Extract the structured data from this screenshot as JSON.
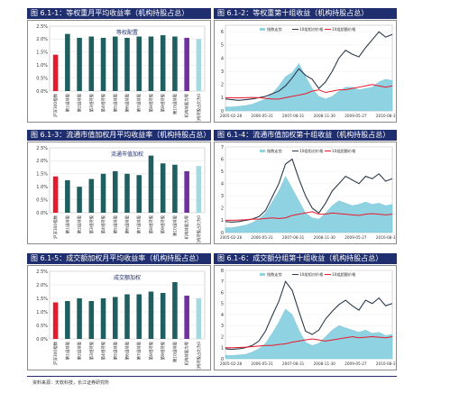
{
  "footer": {
    "source": "资料来源：天软科技，长江证券研究所"
  },
  "panels": [
    {
      "id": "p1",
      "title": "图 6.1-1：等权重月平均收益率（机构持股占总）",
      "type": "bar"
    },
    {
      "id": "p2",
      "title": "图 6.1-2：等权重第十组收益（机构持股占总）",
      "type": "line"
    },
    {
      "id": "p3",
      "title": "图 6.1-3：流通市值加权月平均收益率（机构持股占总）",
      "type": "bar"
    },
    {
      "id": "p4",
      "title": "图 6.1-4：流通市值加权第十组收益（机构持股占总）",
      "type": "line"
    },
    {
      "id": "p5",
      "title": "图 6.1-5：成交额加权月平均收益率（机构持股占总）",
      "type": "bar"
    },
    {
      "id": "p6",
      "title": "图 6.1-6：成交额分组第十组收益（机构持股占总）",
      "type": "line"
    }
  ],
  "chart_data": [
    {
      "type": "bar",
      "title": "等权配置",
      "categories": [
        "沪深300指数",
        "第1组持股",
        "第2组持股",
        "第3组持股",
        "第4组持股",
        "第5组持股",
        "第6组持股",
        "第7组持股",
        "第8组持股",
        "第9组持股",
        "第10组持股",
        "机构持股为零",
        "机构持股占比为0"
      ],
      "values": [
        1.4,
        2.2,
        2.05,
        2.1,
        2.05,
        2.1,
        2.05,
        2.1,
        2.1,
        2.15,
        2.1,
        2.05,
        2.0
      ],
      "colors": [
        "#e8192c",
        "#1f5f5f",
        "#1f5f5f",
        "#1f5f5f",
        "#1f5f5f",
        "#1f5f5f",
        "#1f5f5f",
        "#1f5f5f",
        "#1f5f5f",
        "#1f5f5f",
        "#1f5f5f",
        "#7030a0",
        "#a6d8e0"
      ],
      "yticks": [
        "0.0%",
        "0.5%",
        "1.0%",
        "1.5%",
        "2.0%",
        "2.5%"
      ],
      "ylim": [
        0,
        2.5
      ]
    },
    {
      "type": "line",
      "legend": [
        "指数走势",
        "10组相对价格",
        "10组超额价格"
      ],
      "xticks": [
        "2005-02-28",
        "2006-05-31",
        "2007-08-31",
        "2008-11-30",
        "2009-05-27",
        "2010-08-31"
      ],
      "yticks": [
        "0",
        "1",
        "2",
        "3",
        "4",
        "5",
        "6"
      ],
      "ylim": [
        0,
        6.5
      ],
      "x": [
        0,
        4,
        8,
        12,
        16,
        20,
        24,
        28,
        32,
        36,
        40,
        44,
        48,
        52,
        56,
        60,
        64,
        68,
        72,
        76,
        80,
        84,
        88,
        92,
        96,
        100
      ],
      "series": [
        {
          "name": "指数走势",
          "style": "area",
          "values": [
            0.3,
            0.3,
            0.35,
            0.4,
            0.5,
            0.7,
            0.9,
            1.3,
            1.9,
            2.6,
            2.9,
            3.6,
            2.6,
            1.7,
            1.1,
            0.9,
            1.1,
            1.5,
            1.8,
            1.8,
            1.6,
            1.7,
            1.8,
            2.2,
            2.4,
            2.3
          ]
        },
        {
          "name": "10组相对价格",
          "style": "line",
          "values": [
            0.9,
            0.85,
            0.8,
            0.85,
            0.9,
            1.0,
            1.1,
            1.3,
            1.5,
            1.9,
            2.5,
            3.2,
            2.7,
            2.4,
            1.7,
            2.2,
            3.0,
            4.0,
            4.6,
            4.3,
            4.1,
            4.8,
            5.4,
            6.0,
            5.6,
            5.8
          ]
        },
        {
          "name": "10组超额价格",
          "style": "line",
          "values": [
            1.0,
            1.0,
            0.98,
            1.0,
            1.02,
            1.0,
            0.95,
            0.9,
            0.9,
            1.0,
            1.1,
            1.2,
            1.3,
            1.5,
            1.6,
            1.4,
            1.5,
            1.6,
            1.6,
            1.7,
            1.8,
            1.9,
            2.0,
            1.9,
            1.8,
            1.9
          ]
        }
      ]
    },
    {
      "type": "bar",
      "title": "流通市值加权",
      "categories": [
        "沪深300指数",
        "第1组持股",
        "第2组持股",
        "第3组持股",
        "第4组持股",
        "第5组持股",
        "第6组持股",
        "第7组持股",
        "第8组持股",
        "第9组持股",
        "第10组持股",
        "机构持股为零",
        "机构持股占比为0"
      ],
      "values": [
        1.4,
        1.25,
        1.0,
        1.3,
        1.5,
        1.6,
        1.5,
        1.45,
        2.2,
        1.9,
        1.85,
        1.6,
        1.8
      ],
      "colors": [
        "#e8192c",
        "#1f5f5f",
        "#1f5f5f",
        "#1f5f5f",
        "#1f5f5f",
        "#1f5f5f",
        "#1f5f5f",
        "#1f5f5f",
        "#1f5f5f",
        "#1f5f5f",
        "#1f5f5f",
        "#7030a0",
        "#a6d8e0"
      ],
      "yticks": [
        "0.0%",
        "0.5%",
        "1.0%",
        "1.5%",
        "2.0%",
        "2.5%"
      ],
      "ylim": [
        0,
        2.5
      ]
    },
    {
      "type": "line",
      "legend": [
        "指数走势",
        "10组相对价格",
        "10组超额价格"
      ],
      "xticks": [
        "2005-02-28",
        "2006-05-31",
        "2007-08-31",
        "2008-11-30",
        "2009-05-27",
        "2010-08-31"
      ],
      "yticks": [
        "0",
        "1",
        "2",
        "3",
        "4",
        "5",
        "6",
        "7"
      ],
      "ylim": [
        0,
        7
      ],
      "x": [
        0,
        4,
        8,
        12,
        16,
        20,
        24,
        28,
        32,
        36,
        40,
        44,
        48,
        52,
        56,
        60,
        64,
        68,
        72,
        76,
        80,
        84,
        88,
        92,
        96,
        100
      ],
      "series": [
        {
          "name": "指数走势",
          "style": "area",
          "values": [
            0.4,
            0.4,
            0.5,
            0.6,
            0.8,
            1.1,
            1.6,
            2.5,
            3.4,
            4.6,
            3.6,
            2.6,
            1.6,
            1.2,
            1.1,
            1.6,
            2.2,
            2.6,
            2.4,
            2.2,
            2.3,
            2.5,
            2.3,
            2.4,
            2.2,
            2.3
          ]
        },
        {
          "name": "10组相对价格",
          "style": "line",
          "values": [
            0.9,
            0.85,
            0.9,
            1.0,
            1.1,
            1.3,
            1.8,
            2.9,
            4.0,
            5.6,
            6.0,
            4.4,
            3.0,
            2.0,
            1.6,
            2.4,
            3.4,
            4.0,
            4.6,
            4.3,
            4.0,
            4.6,
            4.4,
            4.8,
            4.2,
            4.4
          ]
        },
        {
          "name": "10组超额价格",
          "style": "line",
          "values": [
            1.0,
            1.0,
            1.02,
            1.05,
            1.1,
            1.1,
            1.15,
            1.2,
            1.15,
            1.2,
            1.4,
            1.5,
            1.6,
            1.7,
            1.5,
            1.5,
            1.6,
            1.55,
            1.5,
            1.45,
            1.4,
            1.5,
            1.55,
            1.5,
            1.45,
            1.5
          ]
        }
      ]
    },
    {
      "type": "bar",
      "title": "成交额加权",
      "categories": [
        "沪深300指数",
        "第1组持股",
        "第2组持股",
        "第3组持股",
        "第4组持股",
        "第5组持股",
        "第6组持股",
        "第7组持股",
        "第8组持股",
        "第9组持股",
        "第10组持股",
        "机构持股为零",
        "机构持股占比为0"
      ],
      "values": [
        1.35,
        1.4,
        1.5,
        1.4,
        1.5,
        1.55,
        1.65,
        1.65,
        1.75,
        1.7,
        2.1,
        1.6,
        1.5
      ],
      "colors": [
        "#e8192c",
        "#1f5f5f",
        "#1f5f5f",
        "#1f5f5f",
        "#1f5f5f",
        "#1f5f5f",
        "#1f5f5f",
        "#1f5f5f",
        "#1f5f5f",
        "#1f5f5f",
        "#1f5f5f",
        "#7030a0",
        "#a6d8e0"
      ],
      "yticks": [
        "0.0%",
        "0.5%",
        "1.0%",
        "1.5%",
        "2.0%",
        "2.5%"
      ],
      "ylim": [
        0,
        2.5
      ]
    },
    {
      "type": "line",
      "legend": [
        "指数走势",
        "10组相对价格",
        "10组超额价格"
      ],
      "xticks": [
        "2005-02-28",
        "2006-05-31",
        "2007-08-31",
        "2008-11-30",
        "2009-05-27",
        "2010-08-31"
      ],
      "yticks": [
        "0",
        "1",
        "2",
        "3",
        "4",
        "5",
        "6",
        "7",
        "8"
      ],
      "ylim": [
        0,
        8
      ],
      "x": [
        0,
        4,
        8,
        12,
        16,
        20,
        24,
        28,
        32,
        36,
        40,
        44,
        48,
        52,
        56,
        60,
        64,
        68,
        72,
        76,
        80,
        84,
        88,
        92,
        96,
        100
      ],
      "series": [
        {
          "name": "指数走势",
          "style": "area",
          "values": [
            0.3,
            0.3,
            0.35,
            0.4,
            0.6,
            0.9,
            1.4,
            2.3,
            3.3,
            4.5,
            4.0,
            2.6,
            1.5,
            1.2,
            1.4,
            2.0,
            2.6,
            3.0,
            2.8,
            2.6,
            2.4,
            2.6,
            2.3,
            2.4,
            2.1,
            2.2
          ]
        },
        {
          "name": "10组相对价格",
          "style": "line",
          "values": [
            0.9,
            0.85,
            0.9,
            1.0,
            1.2,
            1.6,
            2.5,
            3.9,
            5.2,
            7.0,
            6.2,
            4.3,
            2.5,
            2.2,
            2.6,
            3.6,
            4.3,
            4.9,
            5.3,
            4.8,
            4.4,
            5.3,
            5.0,
            5.5,
            4.8,
            5.0
          ]
        },
        {
          "name": "10组超额价格",
          "style": "line",
          "values": [
            1.0,
            1.0,
            1.02,
            1.05,
            1.1,
            1.15,
            1.2,
            1.2,
            1.3,
            1.35,
            1.5,
            1.6,
            1.7,
            1.8,
            1.7,
            1.6,
            1.7,
            1.8,
            1.9,
            2.0,
            1.9,
            1.95,
            2.0,
            1.95,
            1.9,
            2.0
          ]
        }
      ]
    }
  ]
}
